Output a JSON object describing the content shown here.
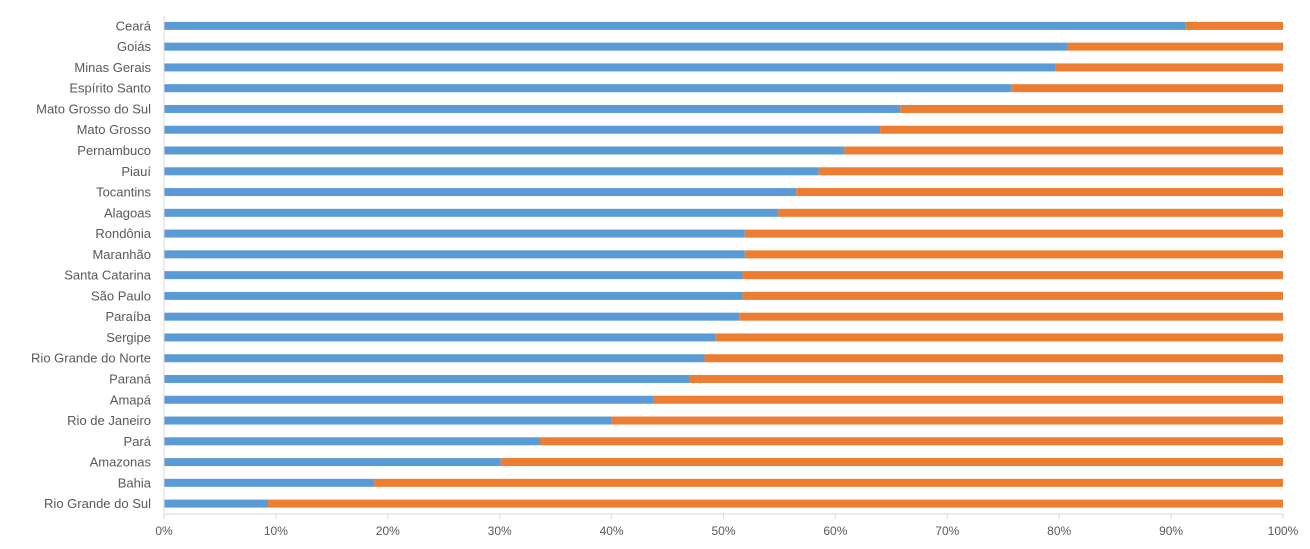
{
  "chart_data": {
    "type": "bar",
    "orientation": "horizontal",
    "stacked": "percent",
    "title": "",
    "xlabel": "",
    "ylabel": "",
    "categories": [
      "Ceará",
      "Goiás",
      "Minas Gerais",
      "Espírito Santo",
      "Mato Grosso do Sul",
      "Mato Grosso",
      "Pernambuco",
      "Piauí",
      "Tocantins",
      "Alagoas",
      "Rondônia",
      "Maranhão",
      "Santa Catarina",
      "São Paulo",
      "Paraíba",
      "Sergipe",
      "Rio Grande do Norte",
      "Paraná",
      "Amapá",
      "Rio de Janeiro",
      "Pará",
      "Amazonas",
      "Bahia",
      "Rio Grande do Sul"
    ],
    "series": [
      {
        "color": "#5b9bd5",
        "values": [
          91.3,
          80.7,
          79.7,
          75.7,
          65.8,
          64.0,
          60.8,
          58.5,
          56.5,
          54.9,
          51.9,
          51.9,
          51.7,
          51.7,
          51.4,
          49.3,
          48.3,
          47.0,
          43.7,
          40.0,
          33.6,
          30.1,
          18.8,
          9.3
        ]
      },
      {
        "color": "#ed7d31",
        "values": [
          8.7,
          19.3,
          20.3,
          24.3,
          34.2,
          36.0,
          39.2,
          41.5,
          43.5,
          45.1,
          48.1,
          48.1,
          48.3,
          48.3,
          48.6,
          50.7,
          51.7,
          53.0,
          56.3,
          60.0,
          66.4,
          69.9,
          81.2,
          90.7
        ]
      }
    ],
    "xlim": [
      0,
      100
    ],
    "ticks": [
      "0%",
      "10%",
      "20%",
      "30%",
      "40%",
      "50%",
      "60%",
      "70%",
      "80%",
      "90%",
      "100%"
    ],
    "grid": false,
    "legend": "none"
  }
}
